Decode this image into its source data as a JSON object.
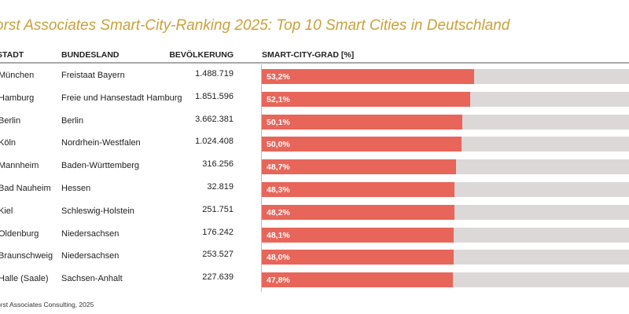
{
  "chart_data": {
    "type": "bar",
    "title": "orst Associates Smart-City-Ranking 2025: Top 10 Smart Cities in Deutschland",
    "columns": [
      "STADT",
      "BUNDESLAND",
      "BEVÖLKERUNG",
      "SMART-CITY-GRAD [%]"
    ],
    "rows": [
      {
        "city": "München",
        "state": "Freistaat Bayern",
        "population": "1.488.719",
        "value": 53.2,
        "label": "53,2%"
      },
      {
        "city": "Hamburg",
        "state": "Freie und Hansestadt Hamburg",
        "population": "1.851.596",
        "value": 52.1,
        "label": "52,1%"
      },
      {
        "city": "Berlin",
        "state": "Berlin",
        "population": "3.662.381",
        "value": 50.1,
        "label": "50,1%"
      },
      {
        "city": "Köln",
        "state": "Nordrhein-Westfalen",
        "population": "1.024.408",
        "value": 50.0,
        "label": "50,0%"
      },
      {
        "city": "Mannheim",
        "state": "Baden-Württemberg",
        "population": "316.256",
        "value": 48.7,
        "label": "48,7%"
      },
      {
        "city": "Bad Nauheim",
        "state": "Hessen",
        "population": "32.819",
        "value": 48.3,
        "label": "48,3%"
      },
      {
        "city": "Kiel",
        "state": "Schleswig-Holstein",
        "population": "251.751",
        "value": 48.2,
        "label": "48,2%"
      },
      {
        "city": "Oldenburg",
        "state": "Niedersachsen",
        "population": "176.242",
        "value": 48.1,
        "label": "48,1%"
      },
      {
        "city": "Braunschweig",
        "state": "Niedersachsen",
        "population": "253.527",
        "value": 48.0,
        "label": "48,0%"
      },
      {
        "city": "Halle (Saale)",
        "state": "Sachsen-Anhalt",
        "population": "227.639",
        "value": 47.8,
        "label": "47,8%"
      }
    ],
    "xlim": [
      0,
      100
    ],
    "colors": {
      "bar": "#e8655a",
      "track": "#dcd8d8",
      "title": "#c9a13a"
    },
    "footer": "orst Associates Consulting, 2025"
  }
}
